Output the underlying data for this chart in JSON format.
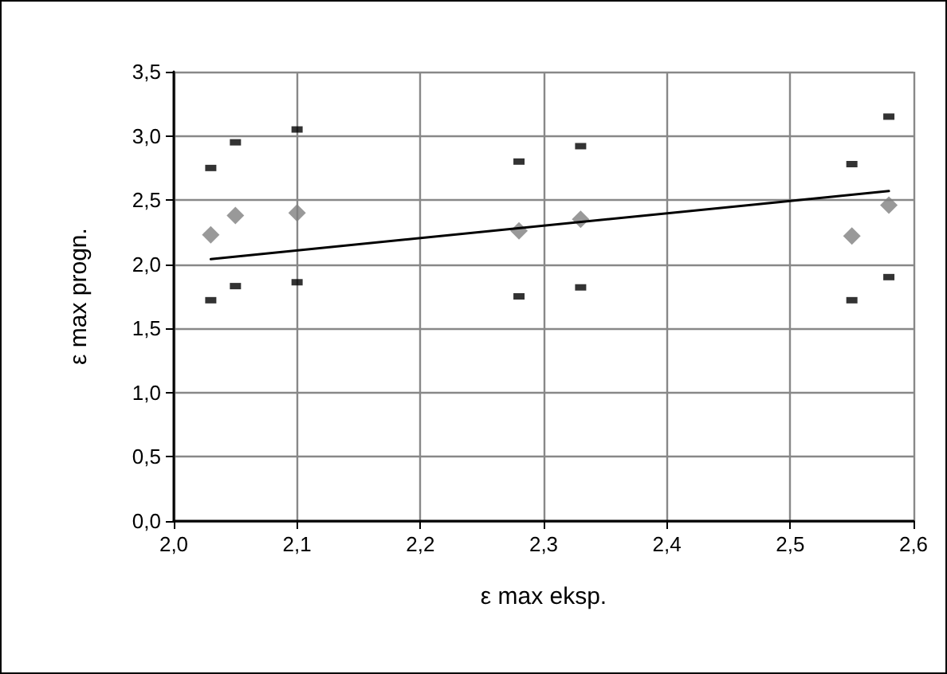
{
  "chart_data": {
    "type": "scatter",
    "xlabel": "ε max eksp.",
    "ylabel": "ε max progn.",
    "xlim": [
      2.0,
      2.6
    ],
    "ylim": [
      0,
      3.5
    ],
    "xticks": [
      {
        "value": 2.0,
        "label": "2,0"
      },
      {
        "value": 2.1,
        "label": "2,1"
      },
      {
        "value": 2.2,
        "label": "2,2"
      },
      {
        "value": 2.3,
        "label": "2,3"
      },
      {
        "value": 2.4,
        "label": "2,4"
      },
      {
        "value": 2.5,
        "label": "2,5"
      },
      {
        "value": 2.6,
        "label": "2,6"
      }
    ],
    "yticks": [
      {
        "value": 0,
        "label": "0,0"
      },
      {
        "value": 0.5,
        "label": "0,5"
      },
      {
        "value": 1.0,
        "label": "1,0"
      },
      {
        "value": 1.5,
        "label": "1,5"
      },
      {
        "value": 2.0,
        "label": "2,0"
      },
      {
        "value": 2.5,
        "label": "2,5"
      },
      {
        "value": 3.0,
        "label": "3,0"
      },
      {
        "value": 3.5,
        "label": "3,5"
      }
    ],
    "grid": true,
    "series": [
      {
        "marker": "diamond",
        "color": "#808080",
        "x": [
          2.03,
          2.05,
          2.1,
          2.28,
          2.33,
          2.55,
          2.58
        ],
        "values": [
          2.23,
          2.38,
          2.4,
          2.26,
          2.35,
          2.22,
          2.46
        ]
      },
      {
        "marker": "square",
        "color": "#000000",
        "x": [
          2.03,
          2.05,
          2.1,
          2.28,
          2.33,
          2.55,
          2.58
        ],
        "values": [
          2.75,
          2.95,
          3.05,
          2.8,
          2.92,
          2.78,
          3.15
        ]
      },
      {
        "marker": "square",
        "color": "#000000",
        "x": [
          2.03,
          2.05,
          2.1,
          2.28,
          2.33,
          2.55,
          2.58
        ],
        "values": [
          1.72,
          1.83,
          1.86,
          1.75,
          1.82,
          1.72,
          1.9
        ]
      },
      {
        "type": "line",
        "marker": "none",
        "line_style": "solid",
        "color": "#000000",
        "x": [
          2.03,
          2.58
        ],
        "values": [
          2.04,
          2.57
        ]
      }
    ]
  }
}
